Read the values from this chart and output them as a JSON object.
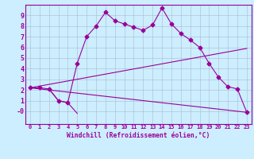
{
  "xlabel": "Windchill (Refroidissement éolien,°C)",
  "bg_color": "#cceeff",
  "line_color": "#990099",
  "grid_color": "#aabbcc",
  "xlim": [
    -0.5,
    23.5
  ],
  "ylim": [
    -1.2,
    10.0
  ],
  "xticks": [
    0,
    1,
    2,
    3,
    4,
    5,
    6,
    7,
    8,
    9,
    10,
    11,
    12,
    13,
    14,
    15,
    16,
    17,
    18,
    19,
    20,
    21,
    22,
    23
  ],
  "yticks": [
    0,
    1,
    2,
    3,
    4,
    5,
    6,
    7,
    8,
    9
  ],
  "ytick_labels": [
    "-0",
    "1",
    "2",
    "3",
    "4",
    "5",
    "6",
    "7",
    "8",
    "9"
  ],
  "curve1_x": [
    0,
    1,
    2,
    3,
    4,
    5,
    6,
    7,
    8,
    9,
    10,
    11,
    12,
    13,
    14,
    15,
    16,
    17,
    18,
    19,
    20,
    21,
    22,
    23
  ],
  "curve1_y": [
    2.2,
    2.2,
    2.1,
    1.0,
    0.8,
    4.5,
    7.0,
    8.0,
    9.3,
    8.5,
    8.2,
    7.9,
    7.6,
    8.1,
    9.7,
    8.2,
    7.3,
    6.7,
    6.0,
    4.5,
    3.2,
    2.3,
    2.1,
    -0.1
  ],
  "curve2_x": [
    0,
    23
  ],
  "curve2_y": [
    2.2,
    5.9
  ],
  "curve3_x": [
    0,
    23
  ],
  "curve3_y": [
    2.2,
    -0.1
  ],
  "curve4_x": [
    2,
    3,
    4,
    5
  ],
  "curve4_y": [
    2.1,
    1.0,
    0.8,
    -0.2
  ]
}
